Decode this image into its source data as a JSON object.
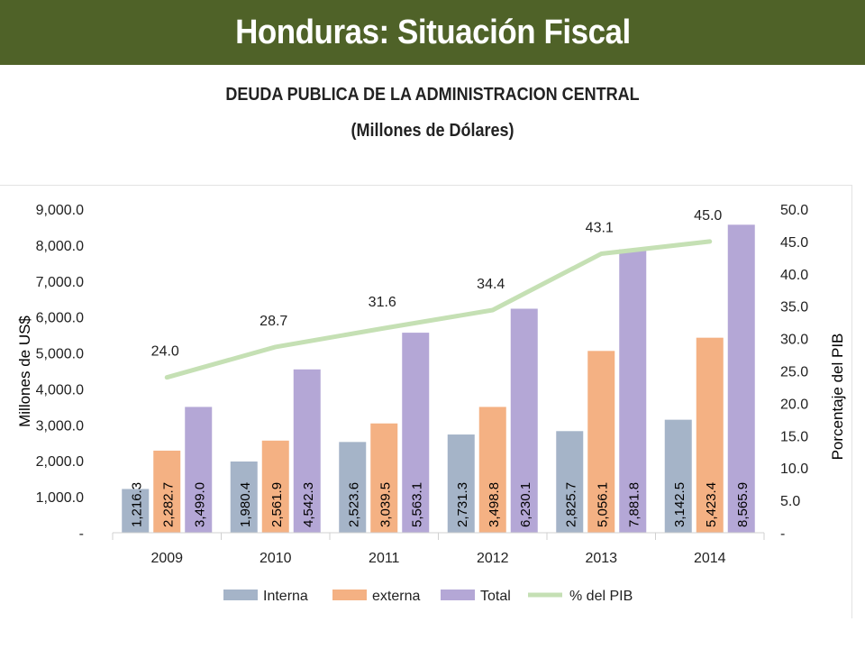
{
  "header": {
    "title": "Honduras: Situación Fiscal"
  },
  "chart_title": "DEUDA PUBLICA DE LA ADMINISTRACION CENTRAL",
  "chart_subtitle": "(Millones de Dólares)",
  "colors": {
    "banner": "#4f6228",
    "interna": "#a5b4c8",
    "externa": "#f4b183",
    "total": "#b4a7d6",
    "pib": "#c5e0b4"
  },
  "chart_data": {
    "type": "bar",
    "categories": [
      "2009",
      "2010",
      "2011",
      "2012",
      "2013",
      "2014"
    ],
    "series": [
      {
        "name": "Interna",
        "values": [
          1216.3,
          1980.4,
          2523.6,
          2731.3,
          2825.7,
          3142.5
        ],
        "labels": [
          "1,216.3",
          "1,980.4",
          "2,523.6",
          "2,731.3",
          "2,825.7",
          "3,142.5"
        ]
      },
      {
        "name": "externa",
        "values": [
          2282.7,
          2561.9,
          3039.5,
          3498.8,
          5056.1,
          5423.4
        ],
        "labels": [
          "2,282.7",
          "2,561.9",
          "3,039.5",
          "3,498.8",
          "5,056.1",
          "5,423.4"
        ]
      },
      {
        "name": "Total",
        "values": [
          3499.0,
          4542.3,
          5563.1,
          6230.1,
          7881.8,
          8565.9
        ],
        "labels": [
          "3,499.0",
          "4,542.3",
          "5,563.1",
          "6,230.1",
          "7,881.8",
          "8,565.9"
        ]
      }
    ],
    "line_series": {
      "name": "% del PIB",
      "type": "line",
      "axis": "right",
      "values": [
        24.0,
        28.7,
        31.6,
        34.4,
        43.1,
        45.0
      ],
      "labels": [
        "24.0",
        "28.7",
        "31.6",
        "34.4",
        "43.1",
        "45.0"
      ]
    },
    "ylabel": "Millones de US$",
    "y2label": "Porcentaje del PIB",
    "ylim": [
      0,
      9000
    ],
    "y2lim": [
      0,
      50
    ],
    "yticks": [
      "-",
      "1,000.0",
      "2,000.0",
      "3,000.0",
      "4,000.0",
      "5,000.0",
      "6,000.0",
      "7,000.0",
      "8,000.0",
      "9,000.0"
    ],
    "y2ticks": [
      "-",
      "5.0",
      "10.0",
      "15.0",
      "20.0",
      "25.0",
      "30.0",
      "35.0",
      "40.0",
      "45.0",
      "50.0"
    ],
    "legend_position": "bottom",
    "legend": [
      "Interna",
      "externa",
      "Total",
      "% del PIB"
    ],
    "grid": false
  }
}
